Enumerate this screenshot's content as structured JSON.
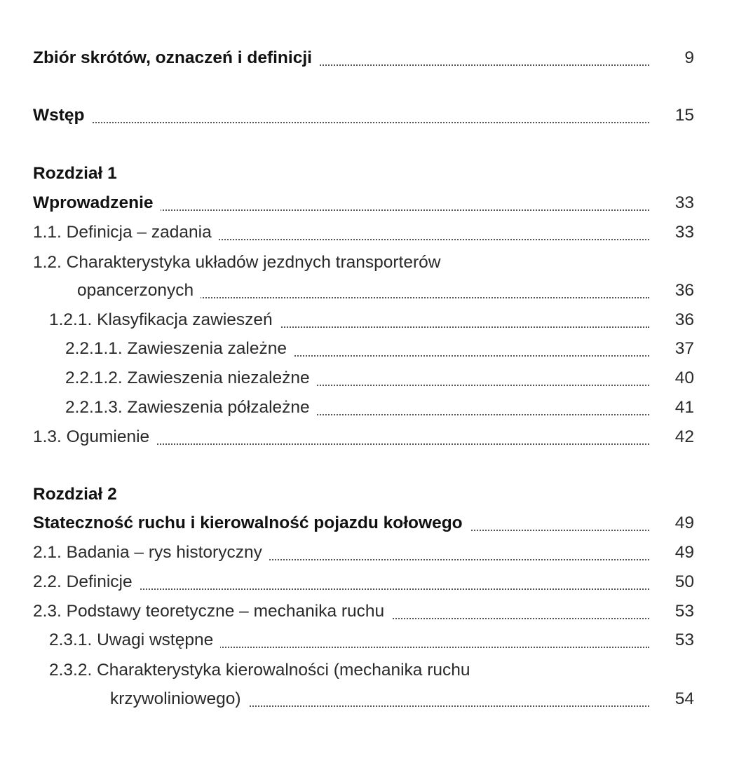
{
  "toc": [
    {
      "text": "Zbiór skrótów, oznaczeń i definicji",
      "page": "9",
      "bold": true,
      "level": 0
    },
    {
      "text": "Wstęp",
      "page": "15",
      "bold": true,
      "level": 0
    },
    {
      "text": "Rozdział 1",
      "bold": true,
      "level": 0,
      "heading": true
    },
    {
      "text": "Wprowadzenie",
      "page": "33",
      "bold": true,
      "level": 0
    },
    {
      "text": "1.1. Definicja – zadania",
      "page": "33",
      "level": 0
    },
    {
      "text": "1.2. Charakterystyka układów jezdnych transporterów",
      "continuation": "opancerzonych",
      "page": "36",
      "level": 0
    },
    {
      "text": "1.2.1. Klasyfikacja zawieszeń",
      "page": "36",
      "level": 1
    },
    {
      "text": "2.2.1.1. Zawieszenia zależne",
      "page": "37",
      "level": 2
    },
    {
      "text": "2.2.1.2. Zawieszenia niezależne",
      "page": "40",
      "level": 2
    },
    {
      "text": "2.2.1.3. Zawieszenia półzależne",
      "page": "41",
      "level": 2
    },
    {
      "text": "1.3. Ogumienie",
      "page": "42",
      "level": 0
    },
    {
      "text": "Rozdział 2",
      "bold": true,
      "level": 0,
      "heading": true
    },
    {
      "text": "Stateczność ruchu i kierowalność pojazdu kołowego",
      "page": "49",
      "bold": true,
      "level": 0
    },
    {
      "text": "2.1. Badania – rys historyczny",
      "page": "49",
      "level": 0
    },
    {
      "text": "2.2. Definicje",
      "page": "50",
      "level": 0
    },
    {
      "text": "2.3. Podstawy teoretyczne – mechanika ruchu",
      "page": "53",
      "level": 0
    },
    {
      "text": "2.3.1. Uwagi wstępne",
      "page": "53",
      "level": 1
    },
    {
      "text": "2.3.2. Charakterystyka kierowalności (mechanika ruchu",
      "continuation": "krzywoliniowego)",
      "page": "54",
      "level": 1
    }
  ]
}
